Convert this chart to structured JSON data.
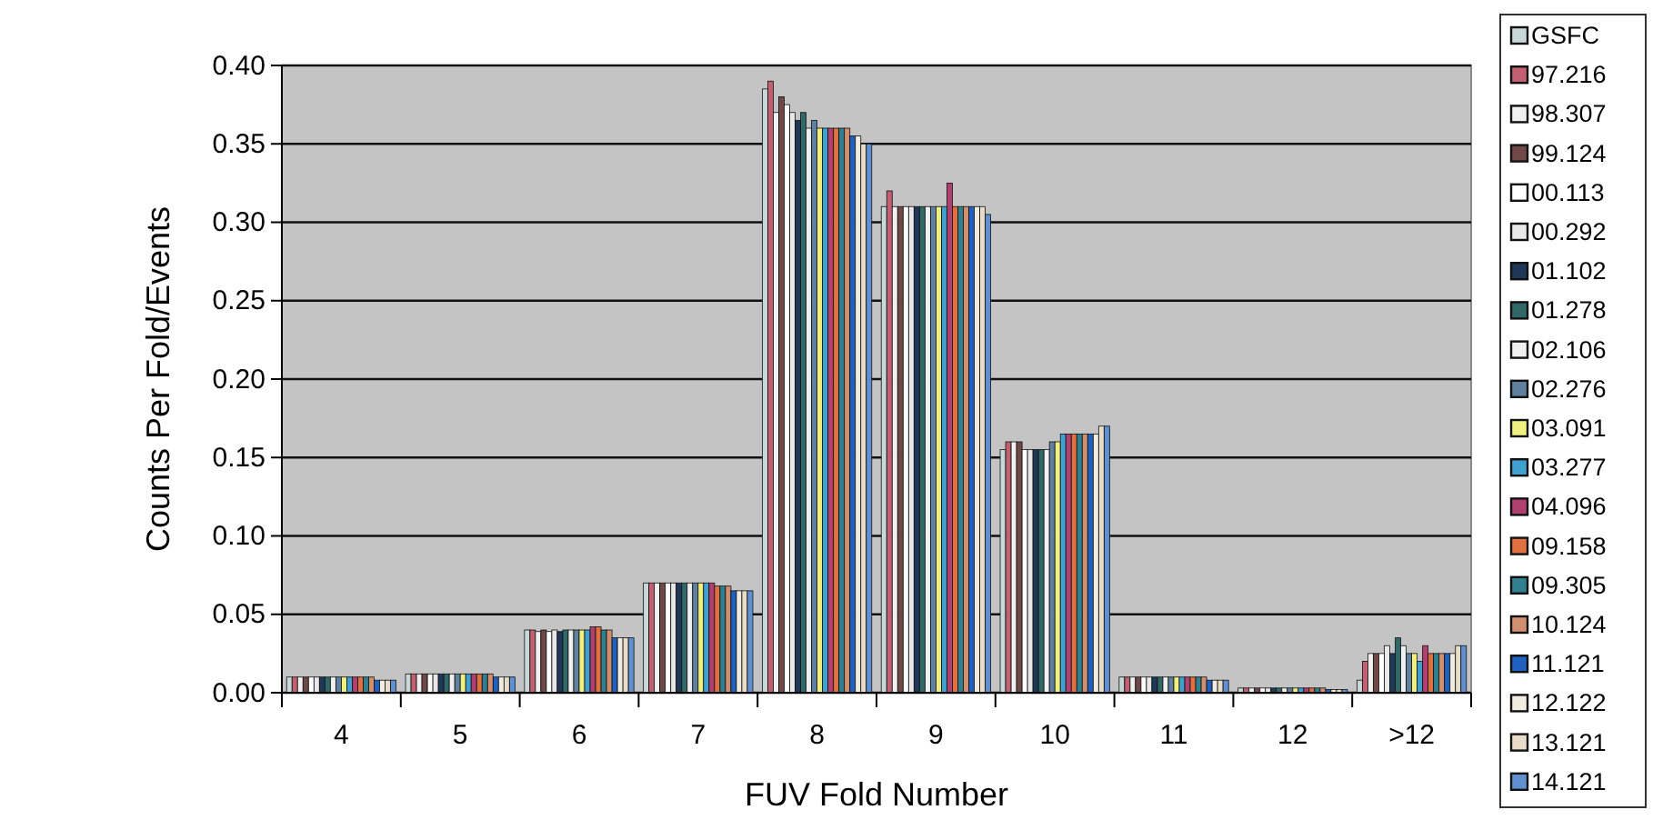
{
  "chart_data": {
    "type": "bar",
    "xlabel": "FUV Fold Number",
    "ylabel": "Counts Per Fold/Events",
    "categories": [
      "4",
      "5",
      "6",
      "7",
      "8",
      "9",
      "10",
      "11",
      "12",
      ">12"
    ],
    "ylim": [
      0,
      0.4
    ],
    "yticks": [
      {
        "value": 0,
        "label": "0.00"
      },
      {
        "value": 0.05,
        "label": "0.05"
      },
      {
        "value": 0.1,
        "label": "0.10"
      },
      {
        "value": 0.15,
        "label": "0.15"
      },
      {
        "value": 0.2,
        "label": "0.20"
      },
      {
        "value": 0.25,
        "label": "0.25"
      },
      {
        "value": 0.3,
        "label": "0.30"
      },
      {
        "value": 0.35,
        "label": "0.35"
      },
      {
        "value": 0.4,
        "label": "0.40"
      }
    ],
    "grid": "y",
    "legend": "right",
    "series": [
      {
        "name": "GSFC",
        "color": "#c8d8d8",
        "values": [
          0.01,
          0.012,
          0.04,
          0.07,
          0.385,
          0.31,
          0.155,
          0.01,
          0.003,
          0.008
        ]
      },
      {
        "name": "97.216",
        "color": "#c06070",
        "values": [
          0.01,
          0.012,
          0.04,
          0.07,
          0.39,
          0.32,
          0.16,
          0.01,
          0.003,
          0.02
        ]
      },
      {
        "name": "98.307",
        "color": "#f0f0f0",
        "values": [
          0.01,
          0.012,
          0.039,
          0.07,
          0.37,
          0.31,
          0.16,
          0.01,
          0.003,
          0.025
        ]
      },
      {
        "name": "99.124",
        "color": "#704848",
        "values": [
          0.01,
          0.012,
          0.04,
          0.07,
          0.38,
          0.31,
          0.16,
          0.01,
          0.003,
          0.025
        ]
      },
      {
        "name": "00.113",
        "color": "#ffffff",
        "values": [
          0.01,
          0.012,
          0.039,
          0.07,
          0.375,
          0.31,
          0.155,
          0.01,
          0.003,
          0.025
        ]
      },
      {
        "name": "00.292",
        "color": "#e8e8e8",
        "values": [
          0.01,
          0.012,
          0.04,
          0.07,
          0.37,
          0.31,
          0.155,
          0.01,
          0.003,
          0.03
        ]
      },
      {
        "name": "01.102",
        "color": "#203858",
        "values": [
          0.01,
          0.012,
          0.039,
          0.07,
          0.365,
          0.31,
          0.155,
          0.01,
          0.003,
          0.025
        ]
      },
      {
        "name": "01.278",
        "color": "#306868",
        "values": [
          0.01,
          0.012,
          0.04,
          0.07,
          0.37,
          0.31,
          0.155,
          0.01,
          0.003,
          0.035
        ]
      },
      {
        "name": "02.106",
        "color": "#f0f0f0",
        "values": [
          0.01,
          0.012,
          0.04,
          0.07,
          0.36,
          0.31,
          0.155,
          0.01,
          0.003,
          0.03
        ]
      },
      {
        "name": "02.276",
        "color": "#6080a0",
        "values": [
          0.01,
          0.012,
          0.04,
          0.07,
          0.365,
          0.31,
          0.16,
          0.01,
          0.003,
          0.025
        ]
      },
      {
        "name": "03.091",
        "color": "#f0f080",
        "values": [
          0.01,
          0.012,
          0.04,
          0.07,
          0.36,
          0.31,
          0.16,
          0.01,
          0.003,
          0.025
        ]
      },
      {
        "name": "03.277",
        "color": "#40a0d0",
        "values": [
          0.01,
          0.012,
          0.04,
          0.07,
          0.36,
          0.31,
          0.165,
          0.01,
          0.003,
          0.02
        ]
      },
      {
        "name": "04.096",
        "color": "#b04070",
        "values": [
          0.01,
          0.012,
          0.042,
          0.07,
          0.36,
          0.325,
          0.165,
          0.01,
          0.003,
          0.03
        ]
      },
      {
        "name": "09.158",
        "color": "#e07040",
        "values": [
          0.01,
          0.012,
          0.042,
          0.068,
          0.36,
          0.31,
          0.165,
          0.01,
          0.003,
          0.025
        ]
      },
      {
        "name": "09.305",
        "color": "#308090",
        "values": [
          0.01,
          0.012,
          0.04,
          0.068,
          0.36,
          0.31,
          0.165,
          0.01,
          0.003,
          0.025
        ]
      },
      {
        "name": "10.124",
        "color": "#d09070",
        "values": [
          0.01,
          0.012,
          0.04,
          0.068,
          0.36,
          0.31,
          0.165,
          0.01,
          0.003,
          0.025
        ]
      },
      {
        "name": "11.121",
        "color": "#2060c0",
        "values": [
          0.008,
          0.01,
          0.035,
          0.065,
          0.355,
          0.31,
          0.165,
          0.008,
          0.002,
          0.025
        ]
      },
      {
        "name": "12.122",
        "color": "#f0ece0",
        "values": [
          0.008,
          0.01,
          0.035,
          0.065,
          0.355,
          0.31,
          0.165,
          0.008,
          0.002,
          0.025
        ]
      },
      {
        "name": "13.121",
        "color": "#e8dcc8",
        "values": [
          0.008,
          0.01,
          0.035,
          0.065,
          0.35,
          0.31,
          0.17,
          0.008,
          0.002,
          0.03
        ]
      },
      {
        "name": "14.121",
        "color": "#6090d0",
        "values": [
          0.008,
          0.01,
          0.035,
          0.065,
          0.35,
          0.305,
          0.17,
          0.008,
          0.002,
          0.03
        ]
      }
    ]
  }
}
